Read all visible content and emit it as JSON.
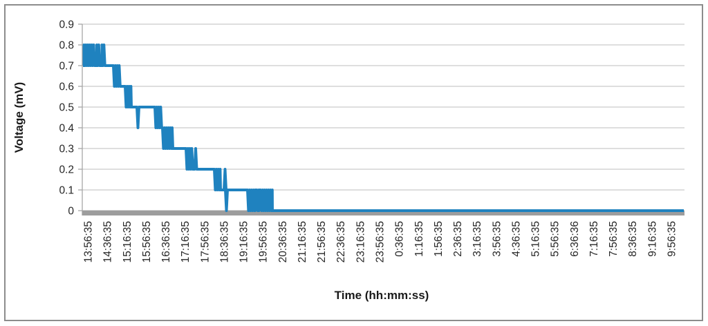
{
  "chart_data": {
    "type": "line",
    "title": "",
    "xlabel": "Time (hh:mm:ss)",
    "ylabel": "Voltage (mV)",
    "ylim": [
      0,
      0.9
    ],
    "grid": "horizontal-only",
    "legend": "none",
    "yticks": [
      0,
      0.1,
      0.2,
      0.3,
      0.4,
      0.5,
      0.6,
      0.7,
      0.8,
      0.9
    ],
    "ytick_labels": [
      "0",
      "0.1",
      "0.2",
      "0.3",
      "0.4",
      "0.5",
      "0.6",
      "0.7",
      "0.8",
      "0.9"
    ],
    "x_tick_labels": [
      "13:56:35",
      "14:36:35",
      "15:16:35",
      "15:56:35",
      "16:36:35",
      "17:16:35",
      "17:56:35",
      "18:36:35",
      "19:16:35",
      "19:56:35",
      "20:36:35",
      "21:16:35",
      "21:56:35",
      "22:36:35",
      "23:16:35",
      "23:56:35",
      "0:36:35",
      "1:16:35",
      "1:56:35",
      "2:36:35",
      "3:16:35",
      "3:56:35",
      "4:36:35",
      "5:16:35",
      "5:56:35",
      "6:36:36",
      "7:16:35",
      "7:56:35",
      "8:36:35",
      "9:16:35",
      "9:56:35"
    ],
    "x_tick_interval": "40 minutes",
    "series_name": "Voltage",
    "series_segments": [
      {
        "type": "flat",
        "f0": 0.0011,
        "f1": 0.0029,
        "v": 0.7,
        "start": "13:45",
        "end": "13:47"
      },
      {
        "type": "oscillation",
        "f0": 0.0029,
        "f1": 0.0207,
        "v_high": 0.8,
        "v_low": 0.7,
        "start": "13:47",
        "end": "14:09"
      },
      {
        "type": "flat",
        "f0": 0.0207,
        "f1": 0.0241,
        "v": 0.7,
        "start": "14:09",
        "end": "14:14"
      },
      {
        "type": "oscillation",
        "f0": 0.0241,
        "f1": 0.0304,
        "v_high": 0.8,
        "v_low": 0.7,
        "start": "14:14",
        "end": "14:21"
      },
      {
        "type": "flat",
        "f0": 0.0304,
        "f1": 0.0327,
        "v": 0.7,
        "start": "14:21",
        "end": "14:24"
      },
      {
        "type": "oscillation",
        "f0": 0.0327,
        "f1": 0.0379,
        "v_high": 0.8,
        "v_low": 0.7,
        "start": "14:24",
        "end": "14:30"
      },
      {
        "type": "flat",
        "f0": 0.0379,
        "f1": 0.0517,
        "v": 0.7,
        "start": "14:30",
        "end": "14:47"
      },
      {
        "type": "oscillation",
        "f0": 0.0517,
        "f1": 0.0631,
        "v_high": 0.7,
        "v_low": 0.6,
        "start": "14:47",
        "end": "15:02"
      },
      {
        "type": "flat",
        "f0": 0.0631,
        "f1": 0.0712,
        "v": 0.6,
        "start": "15:02",
        "end": "15:12"
      },
      {
        "type": "oscillation",
        "f0": 0.0712,
        "f1": 0.0815,
        "v_high": 0.6,
        "v_low": 0.5,
        "start": "15:12",
        "end": "15:25"
      },
      {
        "type": "flat",
        "f0": 0.0815,
        "f1": 0.0907,
        "v": 0.5,
        "start": "15:25",
        "end": "15:36"
      },
      {
        "type": "spike",
        "f": 0.0924,
        "v_to": 0.4,
        "v_base": 0.5,
        "at": "15:38"
      },
      {
        "type": "flat",
        "f0": 0.0941,
        "f1": 0.1206,
        "v": 0.5,
        "start": "15:40",
        "end": "16:13"
      },
      {
        "type": "oscillation",
        "f0": 0.1206,
        "f1": 0.1332,
        "v_high": 0.5,
        "v_low": 0.4,
        "start": "16:13",
        "end": "16:29"
      },
      {
        "type": "oscillation",
        "f0": 0.1332,
        "f1": 0.1504,
        "v_high": 0.4,
        "v_low": 0.3,
        "start": "16:29",
        "end": "16:50"
      },
      {
        "type": "flat",
        "f0": 0.1504,
        "f1": 0.1722,
        "v": 0.3,
        "start": "16:50",
        "end": "17:17"
      },
      {
        "type": "oscillation",
        "f0": 0.1722,
        "f1": 0.1837,
        "v_high": 0.3,
        "v_low": 0.2,
        "start": "17:17",
        "end": "17:31"
      },
      {
        "type": "spike",
        "f": 0.1883,
        "v_to": 0.3,
        "v_base": 0.2,
        "at": "17:37"
      },
      {
        "type": "flat",
        "f0": 0.1906,
        "f1": 0.2193,
        "v": 0.2,
        "start": "17:40",
        "end": "18:15"
      },
      {
        "type": "oscillation",
        "f0": 0.2193,
        "f1": 0.2296,
        "v_high": 0.2,
        "v_low": 0.1,
        "start": "18:15",
        "end": "18:28"
      },
      {
        "type": "flat",
        "f0": 0.2296,
        "f1": 0.2354,
        "v": 0.1,
        "start": "18:28",
        "end": "18:35"
      },
      {
        "type": "spike",
        "f": 0.2371,
        "v_to": 0.2,
        "v_base": 0.1,
        "at": "18:37"
      },
      {
        "type": "spike",
        "f": 0.2394,
        "v_to": 0.0,
        "v_base": 0.1,
        "at": "18:40"
      },
      {
        "type": "flat",
        "f0": 0.2411,
        "f1": 0.2744,
        "v": 0.1,
        "start": "18:42",
        "end": "19:24"
      },
      {
        "type": "oscillation",
        "f0": 0.2744,
        "f1": 0.287,
        "v_high": 0.1,
        "v_low": 0.0,
        "start": "19:24",
        "end": "19:39"
      },
      {
        "type": "flat",
        "f0": 0.287,
        "f1": 0.2899,
        "v": 0.1,
        "start": "19:39",
        "end": "19:43"
      },
      {
        "type": "oscillation",
        "f0": 0.2899,
        "f1": 0.2933,
        "v_high": 0.1,
        "v_low": 0.0,
        "start": "19:43",
        "end": "19:47"
      },
      {
        "type": "flat",
        "f0": 0.2933,
        "f1": 0.2962,
        "v": 0.1,
        "start": "19:47",
        "end": "19:51"
      },
      {
        "type": "oscillation",
        "f0": 0.2962,
        "f1": 0.3157,
        "v_high": 0.1,
        "v_low": 0.0,
        "start": "19:51",
        "end": "20:15"
      },
      {
        "type": "flat",
        "f0": 0.3157,
        "f1": 0.9989,
        "v": 0.0,
        "start": "20:15",
        "end": "end-of-record"
      }
    ],
    "colors": {
      "series": "#1F82BF",
      "gridline": "#C9C9C9",
      "axis_line": "#A6A6A6",
      "axis_baseline_bar": "#9D9D9D",
      "text": "#262626",
      "frame_border": "#8C8C8C",
      "background": "#FFFFFF"
    }
  }
}
